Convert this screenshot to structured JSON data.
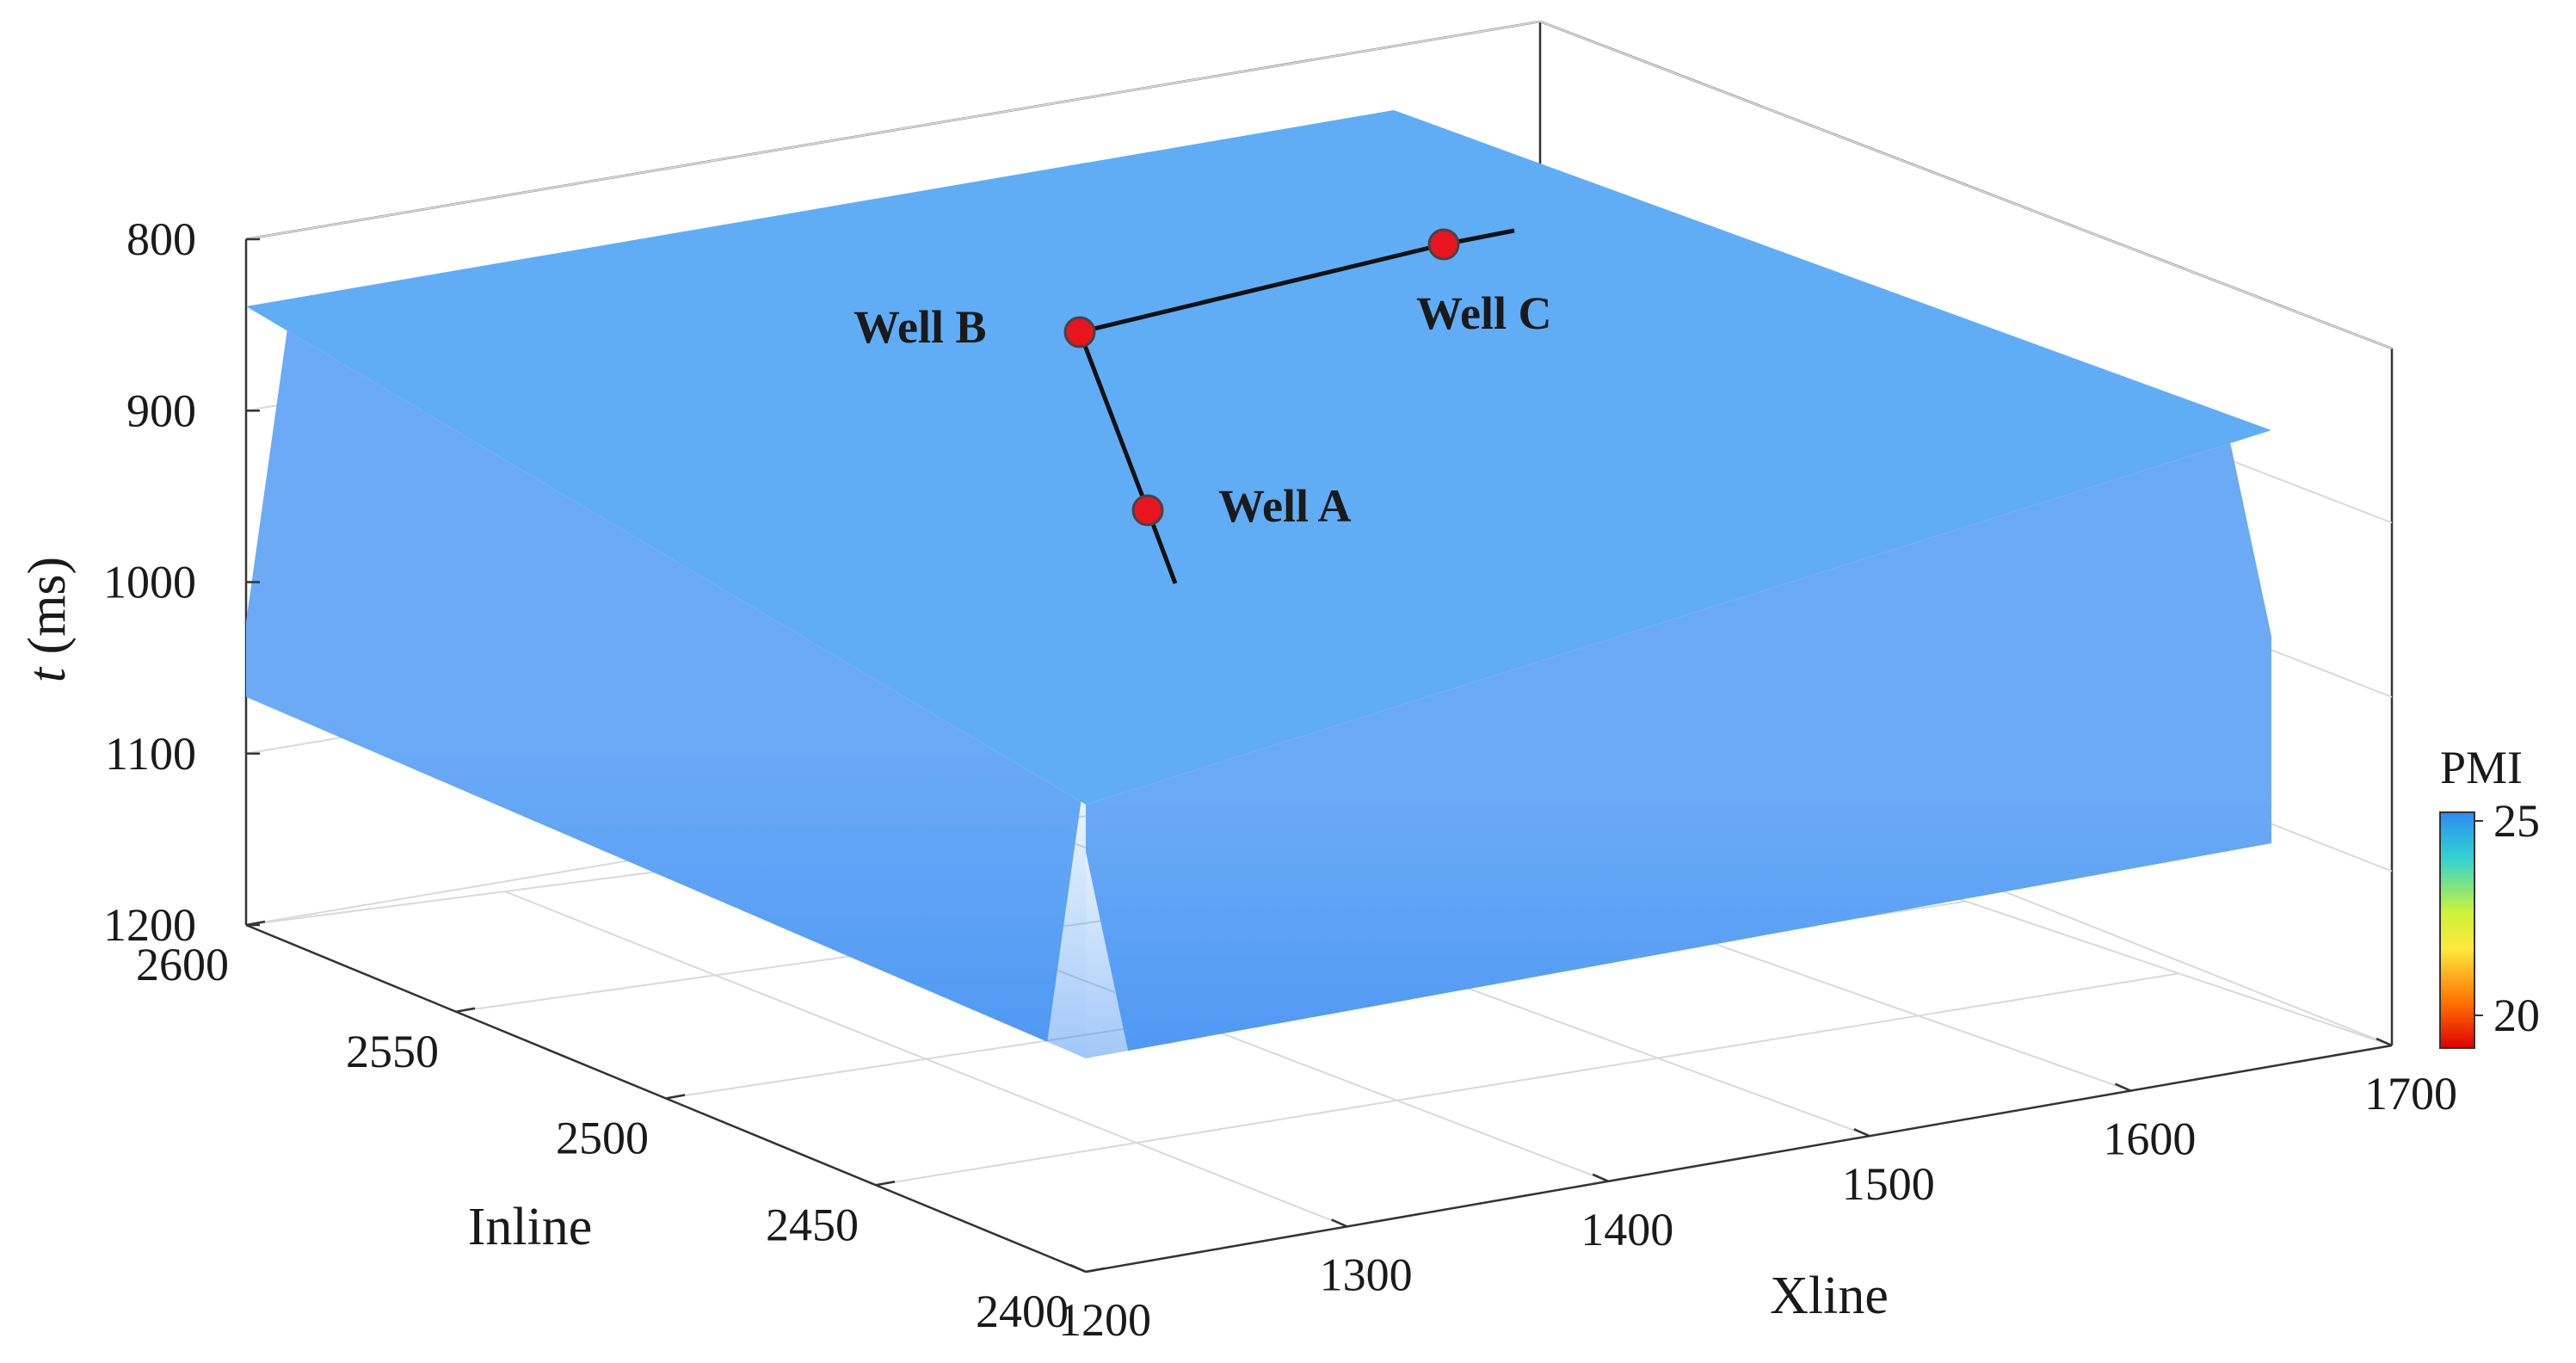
{
  "chart_data": {
    "type": "surface3d",
    "title": "",
    "colormap": "jet",
    "colors": [
      "#dd0000",
      "#ff6a00",
      "#ffe93b",
      "#c9f23a",
      "#35d3d0",
      "#2a8cf0"
    ],
    "axes": {
      "t": {
        "label_italic": "t",
        "label_rest": " (ms)",
        "range": [
          800,
          1200
        ],
        "ticks": [
          800,
          900,
          1000,
          1100,
          1200
        ],
        "tick_labels": [
          "800",
          "900",
          "1000",
          "1100",
          "1200"
        ],
        "reversed": true
      },
      "inline": {
        "label": "Inline",
        "range": [
          2400,
          2600
        ],
        "ticks": [
          2600,
          2550,
          2500,
          2450,
          2400
        ],
        "tick_labels": [
          "2600",
          "2550",
          "2500",
          "2450",
          "2400"
        ]
      },
      "xline": {
        "label": "Xline",
        "range": [
          1200,
          1700
        ],
        "ticks": [
          1200,
          1300,
          1400,
          1500,
          1600,
          1700
        ],
        "tick_labels": [
          "1200",
          "1300",
          "1400",
          "1500",
          "1600",
          "1700"
        ]
      }
    },
    "grid": true,
    "colorbar": {
      "label": "PMI",
      "range": [
        20,
        25
      ],
      "tick_labels": [
        "25",
        "20"
      ],
      "placement": "right"
    },
    "wells": [
      {
        "name": "Well A",
        "label": "Well A"
      },
      {
        "name": "Well B",
        "label": "Well B"
      },
      {
        "name": "Well C",
        "label": "Well C"
      }
    ],
    "well_marker_color": "#e8141e"
  }
}
